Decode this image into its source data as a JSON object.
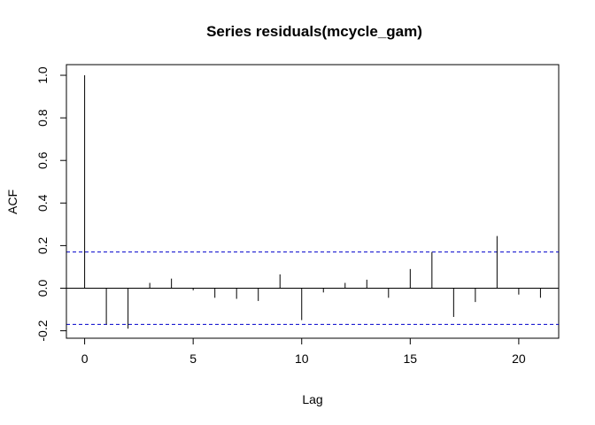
{
  "chart_data": {
    "type": "bar",
    "title": "Series  residuals(mcycle_gam)",
    "xlabel": "Lag",
    "ylabel": "ACF",
    "xlim": [
      -0.84,
      21.84
    ],
    "ylim": [
      -0.235,
      1.05
    ],
    "x_ticks": [
      0,
      5,
      10,
      15,
      20
    ],
    "x_tick_labels": [
      "0",
      "5",
      "10",
      "15",
      "20"
    ],
    "y_ticks": [
      -0.2,
      0.0,
      0.2,
      0.4,
      0.6,
      0.8,
      1.0
    ],
    "y_tick_labels": [
      "-0.2",
      "0.0",
      "0.2",
      "0.4",
      "0.6",
      "0.8",
      "1.0"
    ],
    "lags": [
      0,
      1,
      2,
      3,
      4,
      5,
      6,
      7,
      8,
      9,
      10,
      11,
      12,
      13,
      14,
      15,
      16,
      17,
      18,
      19,
      20,
      21
    ],
    "values": [
      1.0,
      -0.17,
      -0.19,
      0.025,
      0.045,
      -0.01,
      -0.045,
      -0.05,
      -0.06,
      0.065,
      -0.15,
      -0.02,
      0.025,
      0.04,
      -0.045,
      0.09,
      0.17,
      -0.135,
      -0.065,
      0.245,
      -0.03,
      -0.045
    ],
    "confidence_bound": 0.17,
    "confidence_color": "#0000cc",
    "grid": false
  }
}
